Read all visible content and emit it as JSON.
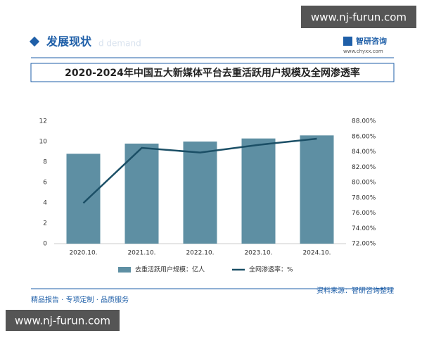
{
  "page": {
    "watermark_top": "www.nj-furun.com",
    "header": "发展现状",
    "header_faint": "d demand",
    "logo": "智研咨询",
    "logo_url": "www.chyxx.com",
    "source": "资料来源：智研咨询整理",
    "footer": "精品报告 · 专项定制 · 品质服务",
    "watermark_bottom": "www.nj-furun.com"
  },
  "chart_data": {
    "type": "bar-line",
    "title": "2020-2024年中国五大新媒体平台去重活跃用户规模及全网渗透率",
    "categories": [
      "2020.10.",
      "2021.10.",
      "2022.10.",
      "2023.10.",
      "2024.10."
    ],
    "series": [
      {
        "name": "去重活跃用户规模：亿人",
        "color": "#5e8fa3",
        "values": [
          8.8,
          9.8,
          10.0,
          10.3,
          10.6
        ]
      },
      {
        "name": "全网渗透率：%",
        "color": "#1b4f66",
        "axis": "y2",
        "values": [
          77.3,
          84.5,
          83.9,
          84.9,
          85.7
        ]
      }
    ],
    "ylim": [
      0,
      12
    ],
    "yticks": [
      0,
      2,
      4,
      6,
      8,
      10,
      12
    ],
    "y2lim": [
      72,
      88
    ],
    "y2ticks": [
      {
        "value": 72,
        "label": "72.00%"
      },
      {
        "value": 74,
        "label": "74.00%"
      },
      {
        "value": 76,
        "label": "76.00%"
      },
      {
        "value": 78,
        "label": "78.00%"
      },
      {
        "value": 80,
        "label": "80.00%"
      },
      {
        "value": 82,
        "label": "82.00%"
      },
      {
        "value": 84,
        "label": "84.00%"
      },
      {
        "value": 86,
        "label": "86.00%"
      },
      {
        "value": 88,
        "label": "88.00%"
      }
    ]
  }
}
